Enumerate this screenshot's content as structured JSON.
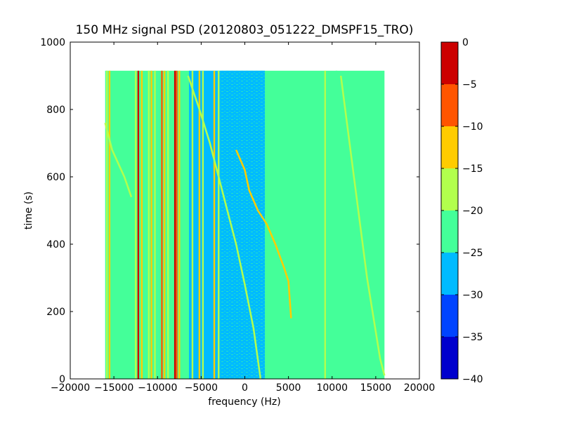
{
  "chart_data": {
    "type": "heatmap",
    "title": "150 MHz signal PSD (20120803_051222_DMSPF15_TRO)",
    "xlabel": "frequency (Hz)",
    "ylabel": "time (s)",
    "xlim": [
      -20000,
      20000
    ],
    "ylim": [
      0,
      1000
    ],
    "xticks": [
      -20000,
      -15000,
      -10000,
      -5000,
      0,
      5000,
      10000,
      15000,
      20000
    ],
    "xtick_labels": [
      "−20000",
      "−15000",
      "−10000",
      "−5000",
      "0",
      "5000",
      "10000",
      "15000",
      "20000"
    ],
    "yticks": [
      0,
      200,
      400,
      600,
      800,
      1000
    ],
    "ytick_labels": [
      "0",
      "200",
      "400",
      "600",
      "800",
      "1000"
    ],
    "data_extent": {
      "x": [
        -16000,
        16000
      ],
      "y": [
        0,
        915
      ]
    },
    "colorbar": {
      "ticks": [
        0,
        -5,
        -10,
        -15,
        -20,
        -25,
        -30,
        -35,
        -40
      ],
      "tick_labels": [
        "0",
        "−5",
        "−10",
        "−15",
        "−20",
        "−25",
        "−30",
        "−35",
        "−40"
      ],
      "range": [
        -40,
        0
      ],
      "levels": [
        {
          "from": -40,
          "to": -35,
          "color": "#0000cd"
        },
        {
          "from": -35,
          "to": -30,
          "color": "#0044ff"
        },
        {
          "from": -30,
          "to": -25,
          "color": "#00bbff"
        },
        {
          "from": -25,
          "to": -20,
          "color": "#44ff99"
        },
        {
          "from": -20,
          "to": -15,
          "color": "#b2ff4d"
        },
        {
          "from": -15,
          "to": -10,
          "color": "#ffcc00"
        },
        {
          "from": -10,
          "to": -5,
          "color": "#ff5500"
        },
        {
          "from": -5,
          "to": 0,
          "color": "#cc0000"
        }
      ]
    },
    "background_level_color": "#44ff99",
    "bands": [
      {
        "x": [
          -2800,
          2300
        ],
        "color": "#00bbff"
      },
      {
        "x": [
          -6400,
          -2800
        ],
        "color": "#00bbff"
      }
    ],
    "vertical_lines": [
      {
        "x": -15800,
        "color": "#b2ff4d"
      },
      {
        "x": -15500,
        "color": "#ffcc00"
      },
      {
        "x": -12500,
        "color": "#b2ff4d"
      },
      {
        "x": -12200,
        "color": "#cc0000"
      },
      {
        "x": -11800,
        "color": "#ffcc00"
      },
      {
        "x": -11000,
        "color": "#b2ff4d"
      },
      {
        "x": -10700,
        "color": "#ffcc00"
      },
      {
        "x": -10300,
        "color": "#b2ff4d"
      },
      {
        "x": -9500,
        "color": "#ff5500"
      },
      {
        "x": -9200,
        "color": "#ffcc00"
      },
      {
        "x": -8800,
        "color": "#b2ff4d"
      },
      {
        "x": -8000,
        "color": "#cc0000"
      },
      {
        "x": -7800,
        "color": "#ff5500"
      },
      {
        "x": -7500,
        "color": "#ffcc00"
      },
      {
        "x": -6000,
        "color": "#b2ff4d"
      },
      {
        "x": -5200,
        "color": "#ffcc00"
      },
      {
        "x": -4800,
        "color": "#b2ff4d"
      },
      {
        "x": -3500,
        "color": "#ffcc00"
      },
      {
        "x": -3000,
        "color": "#b2ff4d"
      },
      {
        "x": 9200,
        "color": "#b2ff4d"
      },
      {
        "x": 10500,
        "color": "#44ff99"
      }
    ],
    "traces": [
      {
        "color": "#ffcc00",
        "points": [
          [
            -1000,
            680
          ],
          [
            0,
            620
          ],
          [
            500,
            560
          ],
          [
            1500,
            500
          ],
          [
            2500,
            460
          ],
          [
            3500,
            400
          ],
          [
            4500,
            330
          ],
          [
            5000,
            290
          ],
          [
            5300,
            180
          ]
        ]
      },
      {
        "color": "#b2ff4d",
        "points": [
          [
            -6500,
            900
          ],
          [
            -5200,
            800
          ],
          [
            -4000,
            700
          ],
          [
            -3000,
            600
          ],
          [
            -2000,
            500
          ],
          [
            -1000,
            400
          ],
          [
            0,
            280
          ],
          [
            1000,
            150
          ],
          [
            1800,
            0
          ]
        ]
      },
      {
        "color": "#b2ff4d",
        "points": [
          [
            -16000,
            760
          ],
          [
            -15200,
            680
          ],
          [
            -14500,
            640
          ],
          [
            -13800,
            600
          ],
          [
            -13000,
            540
          ]
        ]
      },
      {
        "color": "#b2ff4d",
        "points": [
          [
            11000,
            900
          ],
          [
            12500,
            600
          ],
          [
            14000,
            300
          ],
          [
            15500,
            60
          ],
          [
            16000,
            10
          ]
        ]
      }
    ]
  }
}
